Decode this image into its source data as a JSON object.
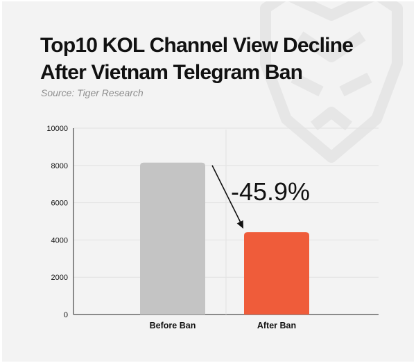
{
  "header": {
    "title_line1": "Top10 KOL Channel View Decline",
    "title_line2": "After Vietnam Telegram Ban",
    "source": "Source: Tiger Research"
  },
  "colors": {
    "background": "#f3f3f3",
    "before_bar": "#c4c4c4",
    "after_bar": "#ef5c3a",
    "text": "#111111",
    "source_text": "#8e8e8e"
  },
  "chart_data": {
    "type": "bar",
    "categories": [
      "Before Ban",
      "After Ban"
    ],
    "values": [
      8150,
      4420
    ],
    "bar_colors": [
      "#c4c4c4",
      "#ef5c3a"
    ],
    "ylim": [
      0,
      10000
    ],
    "yticks": [
      0,
      2000,
      4000,
      6000,
      8000,
      10000
    ],
    "ytick_labels": [
      "0",
      "2000",
      "4000",
      "6000",
      "8000",
      "10000"
    ],
    "grid": true,
    "annotation": {
      "text": "-45.9%",
      "arrow": "from Before Ban bar top to After Ban bar top"
    }
  }
}
